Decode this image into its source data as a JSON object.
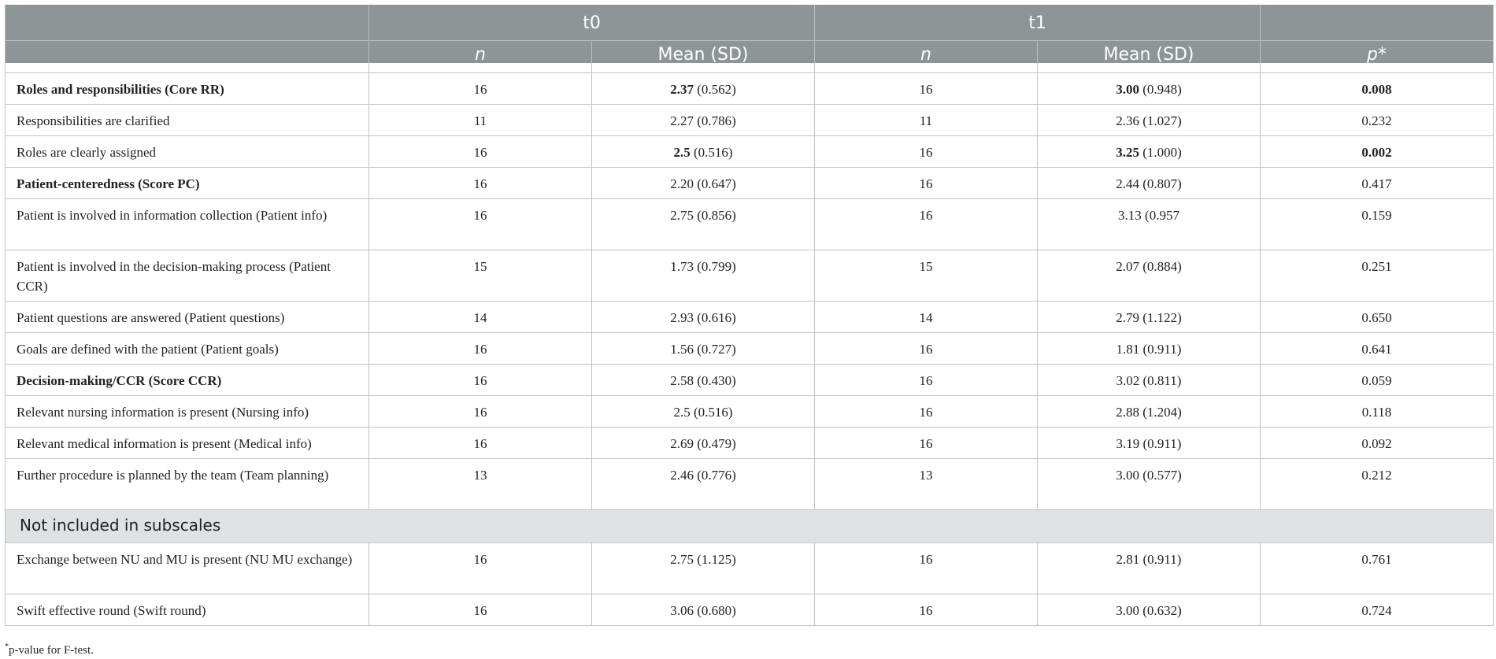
{
  "header": {
    "group1": "t0",
    "group2": "t1",
    "n_label": "n",
    "mean_label": "Mean (SD)",
    "p_label": "p*"
  },
  "rows": [
    {
      "label": "Roles and responsibilities (Core RR)",
      "bold": true,
      "n1": "16",
      "m1_val": "2.37",
      "m1_sd": " (0.562)",
      "m1_bold": true,
      "n2": "16",
      "m2_val": "3.00",
      "m2_sd": " (0.948)",
      "m2_bold": true,
      "p": "0.008",
      "p_bold": true
    },
    {
      "label": "Responsibilities are clarified",
      "bold": false,
      "n1": "11",
      "m1_val": "2.27",
      "m1_sd": " (0.786)",
      "m1_bold": false,
      "n2": "11",
      "m2_val": "2.36",
      "m2_sd": " (1.027)",
      "m2_bold": false,
      "p": "0.232",
      "p_bold": false
    },
    {
      "label": "Roles are clearly assigned",
      "bold": false,
      "n1": "16",
      "m1_val": "2.5",
      "m1_sd": " (0.516)",
      "m1_bold": true,
      "n2": "16",
      "m2_val": "3.25",
      "m2_sd": " (1.000)",
      "m2_bold": true,
      "p": "0.002",
      "p_bold": true
    },
    {
      "label": "Patient-centeredness (Score PC)",
      "bold": true,
      "n1": "16",
      "m1_val": "2.20",
      "m1_sd": " (0.647)",
      "m1_bold": false,
      "n2": "16",
      "m2_val": "2.44",
      "m2_sd": " (0.807)",
      "m2_bold": false,
      "p": "0.417",
      "p_bold": false
    },
    {
      "label": "Patient is involved in information collection (Patient info)",
      "bold": false,
      "tall": true,
      "n1": "16",
      "m1_val": "2.75",
      "m1_sd": " (0.856)",
      "m1_bold": false,
      "n2": "16",
      "m2_val": "3.13",
      "m2_sd": " (0.957",
      "m2_bold": false,
      "p": "0.159",
      "p_bold": false
    },
    {
      "label": "Patient is involved in the decision-making process (Patient CCR)",
      "bold": false,
      "tall": true,
      "n1": "15",
      "m1_val": "1.73",
      "m1_sd": " (0.799)",
      "m1_bold": false,
      "n2": "15",
      "m2_val": "2.07",
      "m2_sd": " (0.884)",
      "m2_bold": false,
      "p": "0.251",
      "p_bold": false
    },
    {
      "label": "Patient questions are answered (Patient questions)",
      "bold": false,
      "n1": "14",
      "m1_val": "2.93",
      "m1_sd": " (0.616)",
      "m1_bold": false,
      "n2": "14",
      "m2_val": "2.79",
      "m2_sd": " (1.122)",
      "m2_bold": false,
      "p": "0.650",
      "p_bold": false
    },
    {
      "label": "Goals are defined with the patient (Patient goals)",
      "bold": false,
      "n1": "16",
      "m1_val": "1.56",
      "m1_sd": " (0.727)",
      "m1_bold": false,
      "n2": "16",
      "m2_val": "1.81",
      "m2_sd": " (0.911)",
      "m2_bold": false,
      "p": "0.641",
      "p_bold": false
    },
    {
      "label": "Decision-making/CCR (Score CCR)",
      "bold": true,
      "n1": "16",
      "m1_val": "2.58",
      "m1_sd": " (0.430)",
      "m1_bold": false,
      "n2": "16",
      "m2_val": "3.02",
      "m2_sd": " (0.811)",
      "m2_bold": false,
      "p": "0.059",
      "p_bold": false
    },
    {
      "label": "Relevant nursing information is present (Nursing info)",
      "bold": false,
      "n1": "16",
      "m1_val": "2.5",
      "m1_sd": " (0.516)",
      "m1_bold": false,
      "n2": "16",
      "m2_val": "2.88",
      "m2_sd": " (1.204)",
      "m2_bold": false,
      "p": "0.118",
      "p_bold": false
    },
    {
      "label": "Relevant medical information is present (Medical info)",
      "bold": false,
      "n1": "16",
      "m1_val": "2.69",
      "m1_sd": " (0.479)",
      "m1_bold": false,
      "n2": "16",
      "m2_val": "3.19",
      "m2_sd": " (0.911)",
      "m2_bold": false,
      "p": "0.092",
      "p_bold": false
    },
    {
      "label": "Further procedure is planned by the team (Team planning)",
      "bold": false,
      "tall": true,
      "n1": "13",
      "m1_val": "2.46",
      "m1_sd": " (0.776)",
      "m1_bold": false,
      "n2": "13",
      "m2_val": "3.00",
      "m2_sd": " (0.577)",
      "m2_bold": false,
      "p": "0.212",
      "p_bold": false
    },
    {
      "section": "Not included in subscales"
    },
    {
      "label": "Exchange between NU and MU is present (NU MU exchange)",
      "bold": false,
      "tall": true,
      "n1": "16",
      "m1_val": "2.75",
      "m1_sd": " (1.125)",
      "m1_bold": false,
      "n2": "16",
      "m2_val": "2.81",
      "m2_sd": " (0.911)",
      "m2_bold": false,
      "p": "0.761",
      "p_bold": false
    },
    {
      "label": "Swift effective round (Swift round)",
      "bold": false,
      "n1": "16",
      "m1_val": "3.06",
      "m1_sd": " (0.680)",
      "m1_bold": false,
      "n2": "16",
      "m2_val": "3.00",
      "m2_sd": " (0.632)",
      "m2_bold": false,
      "p": "0.724",
      "p_bold": false
    }
  ],
  "footnote": {
    "marker": "*",
    "text": "p-value for F-test."
  }
}
